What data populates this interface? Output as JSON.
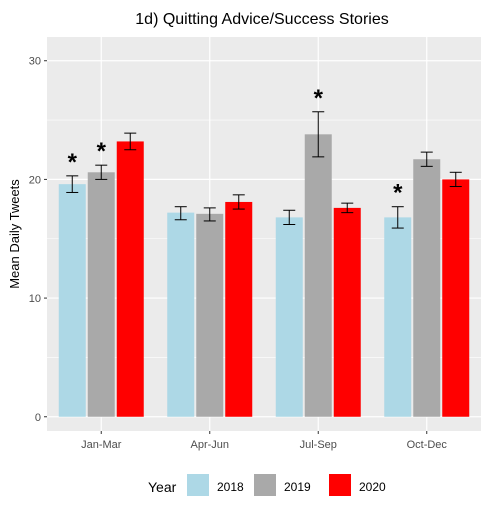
{
  "chart_data": {
    "type": "bar",
    "title": "1d) Quitting Advice/Success Stories",
    "xlabel": "",
    "ylabel": "Mean Daily Tweets",
    "ylim": [
      -1.2,
      32
    ],
    "yticks": [
      0,
      10,
      20,
      30
    ],
    "categories": [
      "Jan-Mar",
      "Apr-Jun",
      "Jul-Sep",
      "Oct-Dec"
    ],
    "legend_title": "Year",
    "legend_position": "bottom",
    "grid": true,
    "significance_marker": "*",
    "series": [
      {
        "name": "2018",
        "color": "#add8e6",
        "values": [
          19.6,
          17.2,
          16.8,
          16.8
        ],
        "err_low": [
          18.9,
          16.6,
          16.2,
          15.9
        ],
        "err_high": [
          20.3,
          17.7,
          17.4,
          17.7
        ],
        "significant": [
          true,
          false,
          false,
          true
        ]
      },
      {
        "name": "2019",
        "color": "#a9a9a9",
        "values": [
          20.6,
          17.1,
          23.8,
          21.7
        ],
        "err_low": [
          20.0,
          16.5,
          21.9,
          21.1
        ],
        "err_high": [
          21.2,
          17.6,
          25.7,
          22.3
        ],
        "significant": [
          true,
          false,
          true,
          false
        ]
      },
      {
        "name": "2020",
        "color": "#ff0000",
        "values": [
          23.2,
          18.1,
          17.6,
          20.0
        ],
        "err_low": [
          22.5,
          17.5,
          17.2,
          19.4
        ],
        "err_high": [
          23.9,
          18.7,
          18.0,
          20.6
        ],
        "significant": [
          false,
          false,
          false,
          false
        ]
      }
    ]
  }
}
